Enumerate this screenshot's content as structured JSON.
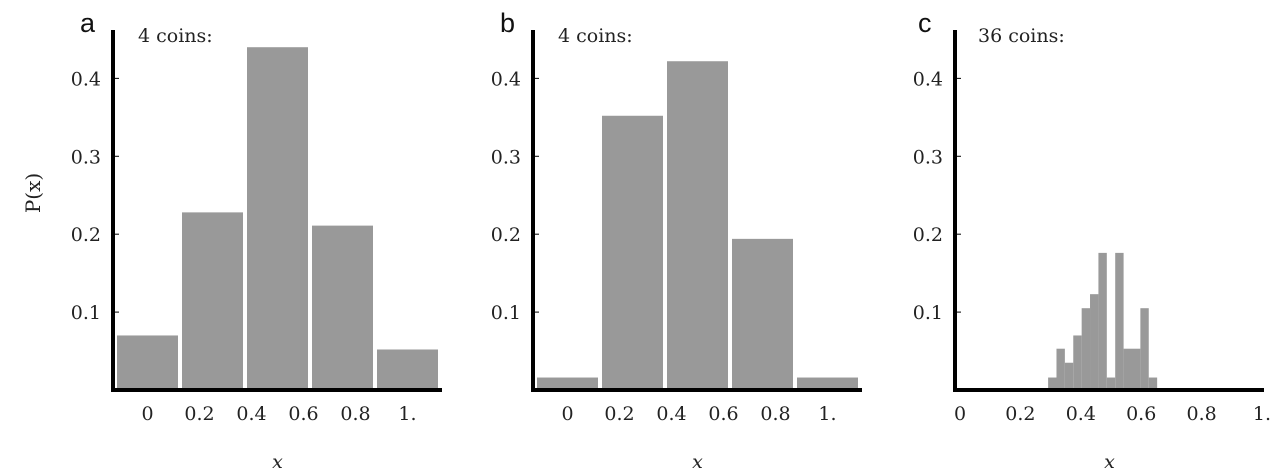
{
  "ylabel": "P(x)",
  "chart_data": [
    {
      "type": "bar",
      "panel_label": "a",
      "title": "4 coins:",
      "xlabel": "x",
      "ylabel": "P(x)",
      "bin_width": 0.25,
      "x_centers": [
        0,
        0.25,
        0.5,
        0.75,
        1.0
      ],
      "values": [
        0.07,
        0.228,
        0.44,
        0.211,
        0.052
      ],
      "xlim": [
        -0.125,
        1.125
      ],
      "ylim": [
        0,
        0.45
      ],
      "xticks": [
        0,
        0.2,
        0.4,
        0.6,
        0.8,
        1.0
      ],
      "xtick_labels": [
        "0",
        "0.2",
        "0.4",
        "0.6",
        "0.8",
        "1."
      ],
      "yticks": [
        0.1,
        0.2,
        0.3,
        0.4
      ],
      "ytick_labels": [
        "0.1",
        "0.2",
        "0.3",
        "0.4"
      ],
      "bar_color": "#999999",
      "grid": false
    },
    {
      "type": "bar",
      "panel_label": "b",
      "title": "4 coins:",
      "xlabel": "x",
      "ylabel": "",
      "bin_width": 0.25,
      "x_centers": [
        0,
        0.25,
        0.5,
        0.75,
        1.0
      ],
      "values": [
        0.016,
        0.352,
        0.422,
        0.194,
        0.016
      ],
      "xlim": [
        -0.125,
        1.125
      ],
      "ylim": [
        0,
        0.45
      ],
      "xticks": [
        0,
        0.2,
        0.4,
        0.6,
        0.8,
        1.0
      ],
      "xtick_labels": [
        "0",
        "0.2",
        "0.4",
        "0.6",
        "0.8",
        "1."
      ],
      "yticks": [
        0.1,
        0.2,
        0.3,
        0.4
      ],
      "ytick_labels": [
        "0.1",
        "0.2",
        "0.3",
        "0.4"
      ],
      "bar_color": "#999999",
      "grid": false
    },
    {
      "type": "bar",
      "panel_label": "c",
      "title": "36 coins:",
      "xlabel": "x",
      "ylabel": "",
      "bin_width": 0.02778,
      "x_centers": [
        0.3056,
        0.3333,
        0.3611,
        0.3889,
        0.4167,
        0.4444,
        0.4722,
        0.5,
        0.5278,
        0.5556,
        0.5833,
        0.6111,
        0.6389
      ],
      "values": [
        0.016,
        0.053,
        0.035,
        0.07,
        0.105,
        0.123,
        0.176,
        0.016,
        0.176,
        0.053,
        0.053,
        0.105,
        0.016
      ],
      "xlim": [
        -0.01,
        1.0
      ],
      "ylim": [
        0,
        0.45
      ],
      "xticks": [
        0,
        0.2,
        0.4,
        0.6,
        0.8,
        1.0
      ],
      "xtick_labels": [
        "0",
        "0.2",
        "0.4",
        "0.6",
        "0.8",
        "1."
      ],
      "yticks": [
        0.1,
        0.2,
        0.3,
        0.4
      ],
      "ytick_labels": [
        "0.1",
        "0.2",
        "0.3",
        "0.4"
      ],
      "bar_color": "#999999",
      "grid": false
    }
  ]
}
